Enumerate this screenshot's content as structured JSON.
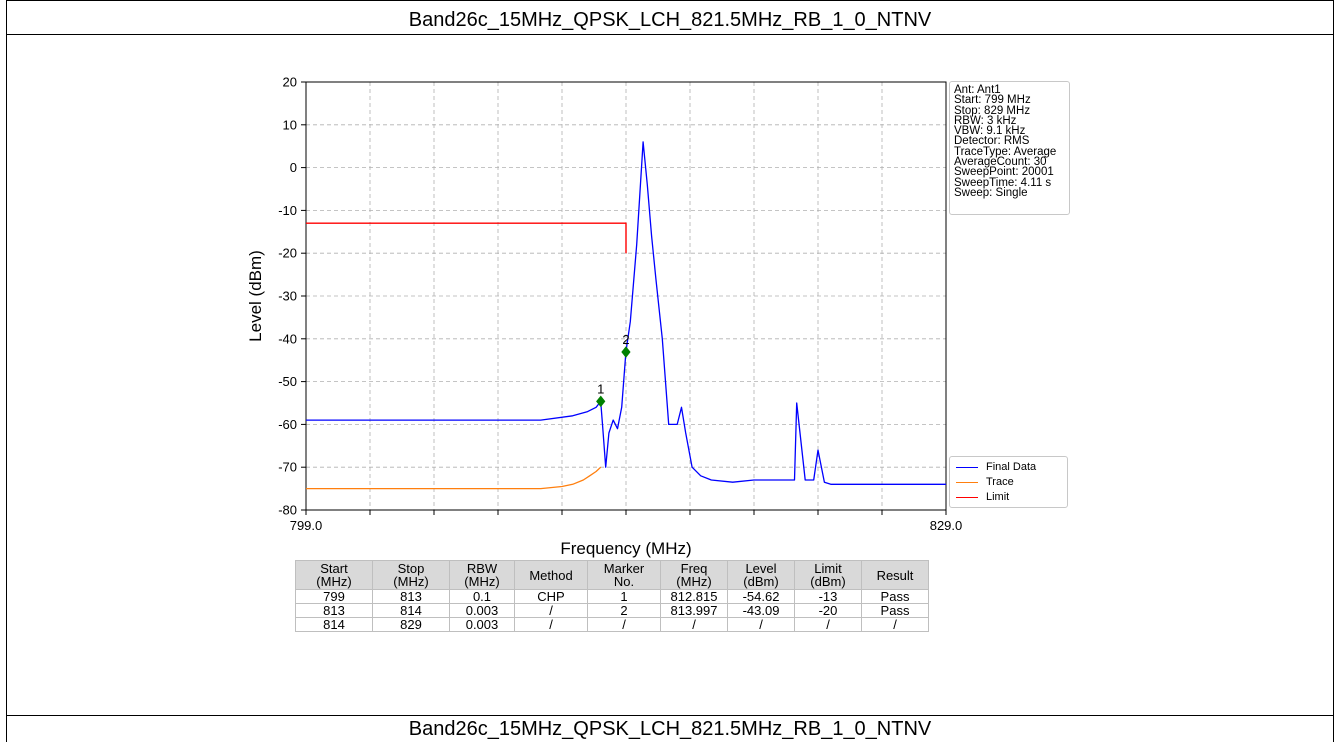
{
  "header": {
    "title": "Band26c_15MHz_QPSK_LCH_821.5MHz_RB_1_0_NTNV"
  },
  "footer": {
    "title": "Band26c_15MHz_QPSK_LCH_821.5MHz_RB_1_0_NTNV"
  },
  "info_box": {
    "lines": [
      "Ant: Ant1",
      "Start: 799 MHz",
      "Stop: 829 MHz",
      "RBW: 3 kHz",
      "VBW: 9.1 kHz",
      "Detector: RMS",
      "TraceType: Average",
      "AverageCount: 30",
      "SweepPoint: 20001",
      "SweepTime: 4.11 s",
      "Sweep: Single"
    ]
  },
  "results_table": {
    "headers": [
      "Start\n(MHz)",
      "Stop\n(MHz)",
      "RBW\n(MHz)",
      "Method",
      "Marker\nNo.",
      "Freq\n(MHz)",
      "Level\n(dBm)",
      "Limit\n(dBm)",
      "Result"
    ],
    "rows": [
      [
        "799",
        "813",
        "0.1",
        "CHP",
        "1",
        "812.815",
        "-54.62",
        "-13",
        "Pass"
      ],
      [
        "813",
        "814",
        "0.003",
        "/",
        "2",
        "813.997",
        "-43.09",
        "-20",
        "Pass"
      ],
      [
        "814",
        "829",
        "0.003",
        "/",
        "/",
        "/",
        "/",
        "/",
        "/"
      ]
    ]
  },
  "colors": {
    "final_data": "#0000ff",
    "trace": "#ff7f0e",
    "limit": "#ff0000",
    "marker": "#008000",
    "grid": "#b0b0b0"
  },
  "chart_data": {
    "type": "line",
    "title": "",
    "xlabel": "Frequency (MHz)",
    "ylabel": "Level (dBm)",
    "xlim": [
      799.0,
      829.0
    ],
    "ylim": [
      -80,
      20
    ],
    "x_tick_labels": [
      "799.0",
      "829.0"
    ],
    "x_minor_ticks": [
      802,
      805,
      808,
      811,
      814,
      817,
      820,
      823,
      826
    ],
    "y_ticks": [
      20,
      10,
      0,
      -10,
      -20,
      -30,
      -40,
      -50,
      -60,
      -70,
      -80
    ],
    "grid": true,
    "legend_position": "lower-right-outside",
    "series": [
      {
        "name": "Final Data",
        "x": [
          799.0,
          802.0,
          805.0,
          808.0,
          810.0,
          811.5,
          812.2,
          812.6,
          812.815,
          812.9,
          813.05,
          813.2,
          813.4,
          813.6,
          813.8,
          813.997,
          814.2,
          814.5,
          814.8,
          815.0,
          815.2,
          815.4,
          815.7,
          816.0,
          816.4,
          816.6,
          816.8,
          817.1,
          817.5,
          818.0,
          819.0,
          820.0,
          821.0,
          821.5,
          821.9,
          822.0,
          822.4,
          822.8,
          823.0,
          823.3,
          823.6,
          824.0,
          826.0,
          829.0
        ],
        "y": [
          -59.0,
          -59.0,
          -59.0,
          -59.0,
          -59.0,
          -58.0,
          -57.0,
          -56.0,
          -54.62,
          -60.0,
          -70.0,
          -62.0,
          -59.0,
          -61.0,
          -56.0,
          -43.09,
          -36.0,
          -18.0,
          6.0,
          -4.0,
          -16.0,
          -26.0,
          -40.0,
          -60.0,
          -60.0,
          -56.0,
          -62.0,
          -70.0,
          -72.0,
          -73.0,
          -73.5,
          -73.0,
          -73.0,
          -73.0,
          -73.0,
          -55.0,
          -73.0,
          -73.0,
          -66.0,
          -73.5,
          -74.0,
          -74.0,
          -74.0,
          -74.0
        ]
      },
      {
        "name": "Trace",
        "x": [
          799.0,
          802.0,
          805.0,
          808.0,
          810.0,
          811.0,
          811.5,
          812.0,
          812.3,
          812.6,
          812.815
        ],
        "y": [
          -75.0,
          -75.0,
          -75.0,
          -75.0,
          -75.0,
          -74.5,
          -74.0,
          -73.0,
          -72.0,
          -71.0,
          -70.0
        ]
      },
      {
        "name": "Limit",
        "x": [
          799.0,
          814.0,
          814.0
        ],
        "y": [
          -13,
          -13,
          -20
        ]
      }
    ],
    "markers": [
      {
        "label": "1",
        "x": 812.815,
        "y": -54.62
      },
      {
        "label": "2",
        "x": 813.997,
        "y": -43.09
      }
    ]
  }
}
